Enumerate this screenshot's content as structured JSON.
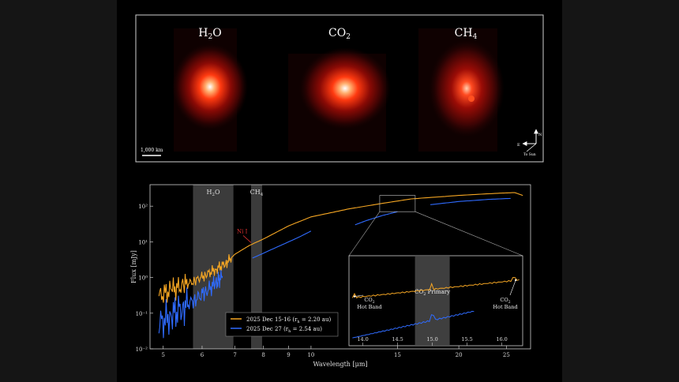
{
  "colors": {
    "orange": "#f5a623",
    "blue": "#2f6bff",
    "panel_border": "#cfcfcf",
    "band_fill": "#4a4a4a",
    "ni_label": "#e03030"
  },
  "images_panel": {
    "labels": {
      "h2o": "H",
      "h2o_sub": "2",
      "h2o_tail": "O",
      "co2": "CO",
      "co2_sub": "2",
      "ch4": "CH",
      "ch4_sub": "4"
    },
    "scale_bar": "1,000 km",
    "compass": {
      "north": "N",
      "east": "E",
      "sun": "To Sun"
    }
  },
  "chart_data": {
    "type": "line",
    "x_scale": "log",
    "y_scale": "log",
    "xlabel": "Wavelength [μm]",
    "ylabel": "Flux [mJy]",
    "xlim": [
      4.7,
      28
    ],
    "ylim": [
      0.01,
      400
    ],
    "x_ticks": [
      "5",
      "6",
      "7",
      "8",
      "9",
      "10",
      "15",
      "20",
      "25"
    ],
    "y_ticks": [
      "10²",
      "10¹",
      "10⁰",
      "10⁻¹",
      "10⁻²"
    ],
    "bands": [
      {
        "label": "H",
        "sub": "2",
        "tail": "O",
        "x": [
          5.75,
          6.95
        ]
      },
      {
        "label": "CH",
        "sub": "4",
        "tail": "",
        "x": [
          7.55,
          7.95
        ]
      }
    ],
    "annotation": {
      "text": "Ni I",
      "x": 7.55,
      "y": 9
    },
    "series": [
      {
        "name": "2025 Dec 15-16",
        "suffix": " = 2.20 au)",
        "color": "#f5a623",
        "x": [
          4.9,
          5.2,
          5.5,
          5.8,
          6.1,
          6.4,
          6.7,
          7.0,
          7.5,
          8.0,
          9.0,
          10.0,
          12.0,
          14.0,
          16.0,
          20.0,
          24.0,
          26.0,
          27.0
        ],
        "y": [
          0.3,
          0.45,
          0.6,
          0.8,
          1.2,
          1.7,
          2.5,
          4.5,
          8,
          12,
          28,
          50,
          85,
          120,
          160,
          200,
          230,
          240,
          200
        ]
      },
      {
        "name": "2025 Dec 27",
        "suffix": " = 2.54 au)",
        "color": "#2f6bff",
        "x": [
          4.9,
          5.2,
          5.5,
          5.8,
          6.1,
          6.4,
          6.6
        ],
        "y": [
          0.05,
          0.09,
          0.15,
          0.24,
          0.4,
          0.7,
          1.1
        ]
      },
      {
        "name": "",
        "color": "#2f6bff",
        "x": [
          7.6,
          8.5,
          9.5,
          10.0
        ],
        "y": [
          3.5,
          7,
          14,
          20
        ]
      },
      {
        "name": "",
        "color": "#2f6bff",
        "x": [
          12.3,
          13.0,
          14.0,
          15.0
        ],
        "y": [
          30,
          40,
          55,
          70
        ]
      },
      {
        "name": "",
        "color": "#2f6bff",
        "x": [
          17.5,
          20.0,
          23.0,
          25.5
        ],
        "y": [
          110,
          135,
          155,
          165
        ]
      }
    ],
    "legend": {
      "placement": "bottom-center",
      "r_label": "(r",
      "r_sub": "h"
    },
    "inset": {
      "xlim": [
        13.8,
        16.3
      ],
      "x_ticks": [
        "14.0",
        "14.5",
        "15.0",
        "15.5",
        "16.0"
      ],
      "band": {
        "label": "CO",
        "sub": "2",
        "tail": " Primary",
        "x": [
          14.75,
          15.25
        ]
      },
      "orange": {
        "x": [
          13.85,
          16.25
        ],
        "rel": [
          0.72,
          0.18
        ]
      },
      "blue": {
        "x": [
          13.85,
          15.6
        ],
        "rel": [
          0.1,
          0.0
        ]
      },
      "annotations": [
        {
          "line1": "CO",
          "sub": "2",
          "line2": "Hot Band",
          "side": "left"
        },
        {
          "line1": "CO",
          "sub": "2",
          "line2": "Hot Band",
          "side": "right"
        }
      ]
    }
  }
}
